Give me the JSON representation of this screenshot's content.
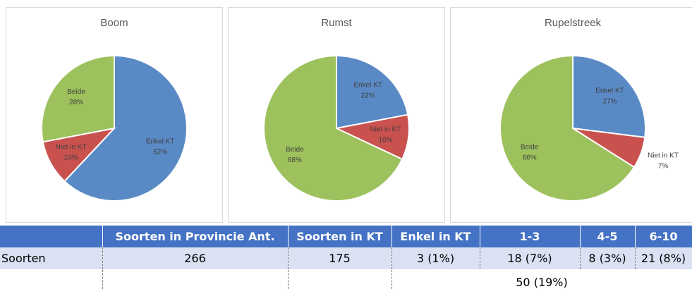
{
  "chart_data": [
    {
      "type": "pie",
      "title": "Boom",
      "categories": [
        "Enkel KT",
        "Niet in KT",
        "Beide"
      ],
      "values": [
        62,
        10,
        28
      ],
      "value_labels": [
        "62%",
        "10%",
        "28%"
      ],
      "colors": [
        "#5a8ac6",
        "#c9514e",
        "#9dc15c"
      ]
    },
    {
      "type": "pie",
      "title": "Rumst",
      "categories": [
        "Enkel KT",
        "Niet in KT",
        "Beide"
      ],
      "values": [
        22,
        10,
        68
      ],
      "value_labels": [
        "22%",
        "10%",
        "68%"
      ],
      "colors": [
        "#5a8ac6",
        "#c9514e",
        "#9dc15c"
      ]
    },
    {
      "type": "pie",
      "title": "Rupelstreek",
      "categories": [
        "Enkel KT",
        "Niet in KT",
        "Beide"
      ],
      "values": [
        27,
        7,
        66
      ],
      "value_labels": [
        "27%",
        "7%",
        "66%"
      ],
      "colors": [
        "#5a8ac6",
        "#c9514e",
        "#9dc15c"
      ]
    }
  ],
  "table": {
    "columns": [
      "Soorten in Provincie Ant.",
      "Soorten in KT",
      "Enkel in KT",
      "1-3",
      "4-5",
      "6-10"
    ],
    "rows": [
      [
        "Soorten",
        "266",
        "175",
        "3 (1%)",
        "18 (7%)",
        "8 (3%)",
        "21 (8%)"
      ]
    ],
    "total": "50 (19%)"
  }
}
